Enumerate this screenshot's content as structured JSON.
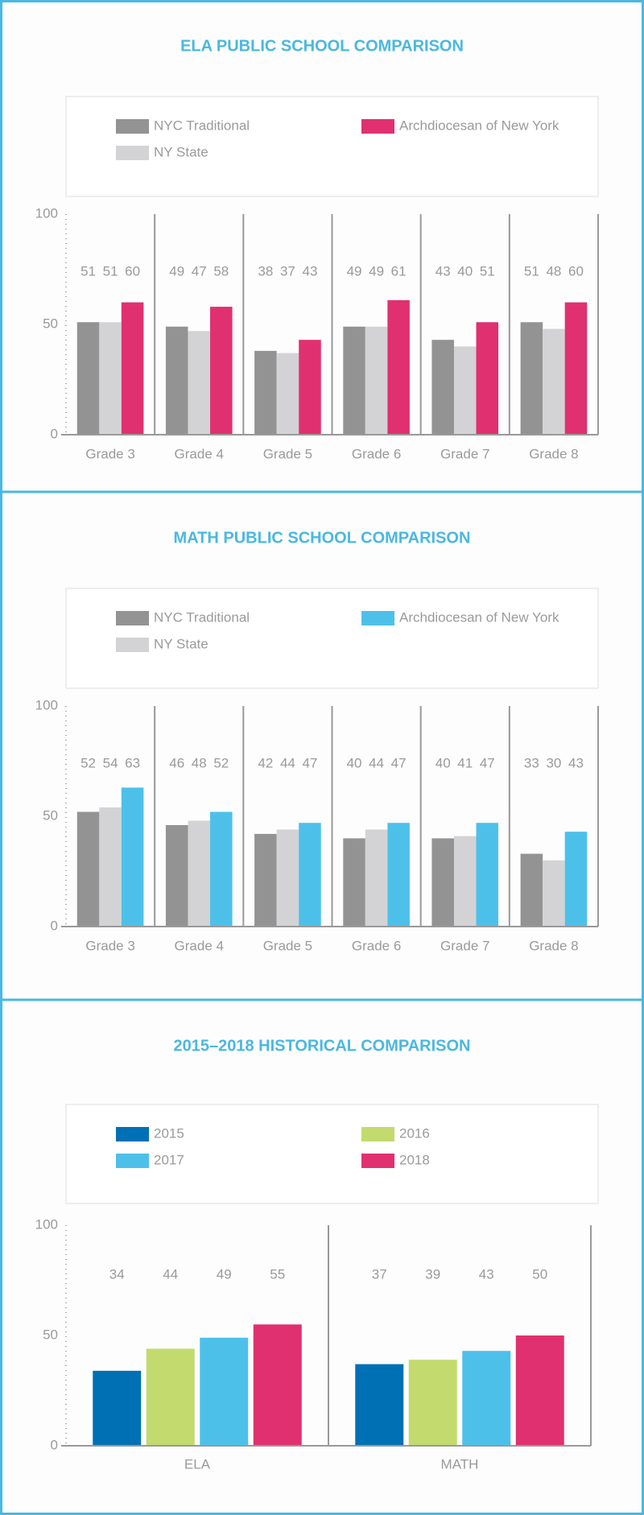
{
  "chart_data": [
    {
      "type": "bar",
      "title": "ELA PUBLIC SCHOOL COMPARISON",
      "categories": [
        "Grade 3",
        "Grade 4",
        "Grade 5",
        "Grade 6",
        "Grade 7",
        "Grade 8"
      ],
      "series": [
        {
          "name": "NYC Traditional",
          "color": "#939393",
          "values": [
            51,
            49,
            38,
            49,
            43,
            51
          ]
        },
        {
          "name": "Archdiocesan of New York",
          "color": "#e0306f",
          "values": [
            60,
            58,
            43,
            61,
            51,
            60
          ]
        },
        {
          "name": "NY State",
          "color": "#d3d3d5",
          "values": [
            51,
            47,
            37,
            49,
            40,
            48
          ]
        }
      ],
      "bar_order": [
        0,
        2,
        1
      ],
      "ylim": [
        0,
        100
      ],
      "yticks": [
        0,
        50,
        100
      ]
    },
    {
      "type": "bar",
      "title": "MATH PUBLIC SCHOOL COMPARISON",
      "categories": [
        "Grade 3",
        "Grade 4",
        "Grade 5",
        "Grade 6",
        "Grade 7",
        "Grade 8"
      ],
      "series": [
        {
          "name": "NYC Traditional",
          "color": "#939393",
          "values": [
            52,
            46,
            42,
            40,
            40,
            33
          ]
        },
        {
          "name": "Archdiocesan of New York",
          "color": "#4dc0ea",
          "values": [
            63,
            52,
            47,
            47,
            47,
            43
          ]
        },
        {
          "name": "NY State",
          "color": "#d3d3d5",
          "values": [
            54,
            48,
            44,
            44,
            41,
            30
          ]
        }
      ],
      "bar_order": [
        0,
        2,
        1
      ],
      "ylim": [
        0,
        100
      ],
      "yticks": [
        0,
        50,
        100
      ]
    },
    {
      "type": "bar",
      "title": "2015–2018 HISTORICAL COMPARISON",
      "categories": [
        "ELA",
        "MATH"
      ],
      "series": [
        {
          "name": "2015",
          "color": "#0070b5",
          "values": [
            34,
            37
          ]
        },
        {
          "name": "2016",
          "color": "#c3da6f",
          "values": [
            44,
            39
          ]
        },
        {
          "name": "2017",
          "color": "#4dc0ea",
          "values": [
            49,
            43
          ]
        },
        {
          "name": "2018",
          "color": "#e0306f",
          "values": [
            55,
            50
          ]
        }
      ],
      "bar_order": [
        0,
        1,
        2,
        3
      ],
      "ylim": [
        0,
        100
      ],
      "yticks": [
        0,
        50,
        100
      ]
    }
  ]
}
